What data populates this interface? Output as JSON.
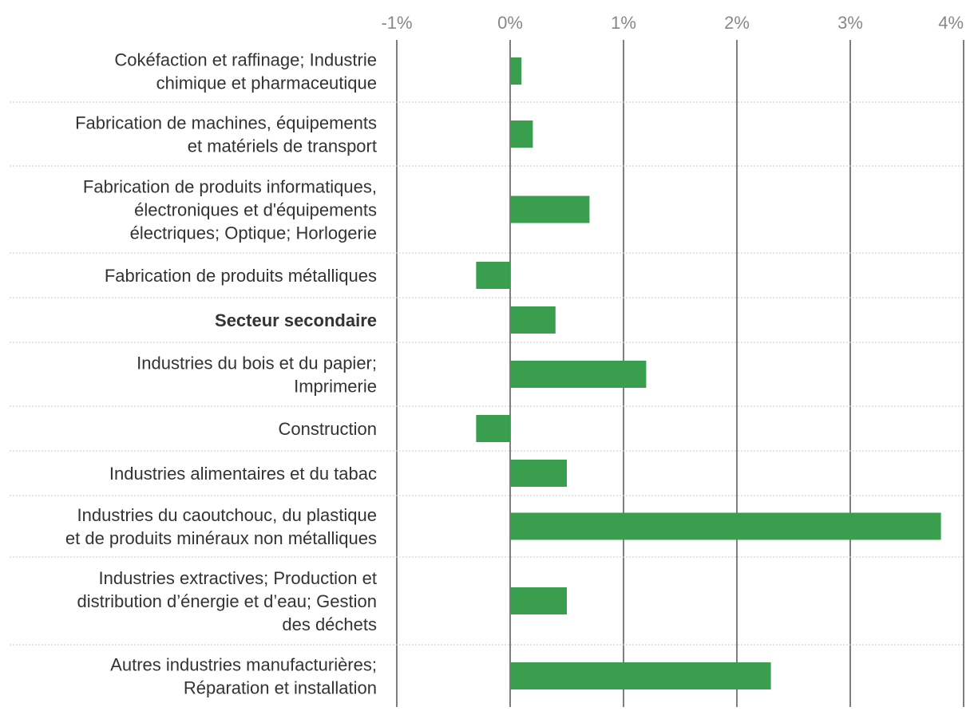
{
  "chart_data": {
    "type": "bar",
    "orientation": "horizontal",
    "title": "",
    "xlabel": "",
    "ylabel": "",
    "xlim": [
      -1,
      4
    ],
    "xticks": [
      -1,
      0,
      1,
      2,
      3,
      4
    ],
    "tick_labels": [
      "-1%",
      "0%",
      "1%",
      "2%",
      "3%",
      "4%"
    ],
    "grid": true,
    "bar_color": "#3a9e4f",
    "categories": [
      {
        "lines": [
          "Cokéfaction et raffinage; Industrie",
          "chimique et pharmaceutique"
        ],
        "value": 0.1,
        "bold": false
      },
      {
        "lines": [
          "Fabrication de machines, équipements",
          "et matériels de transport"
        ],
        "value": 0.2,
        "bold": false
      },
      {
        "lines": [
          "Fabrication de produits informatiques,",
          "électroniques et d'équipements",
          "électriques; Optique; Horlogerie"
        ],
        "value": 0.7,
        "bold": false
      },
      {
        "lines": [
          "Fabrication de produits métalliques"
        ],
        "value": -0.3,
        "bold": false
      },
      {
        "lines": [
          "Secteur secondaire"
        ],
        "value": 0.4,
        "bold": true
      },
      {
        "lines": [
          "Industries du bois et du papier;",
          "Imprimerie"
        ],
        "value": 1.2,
        "bold": false
      },
      {
        "lines": [
          "Construction"
        ],
        "value": -0.3,
        "bold": false
      },
      {
        "lines": [
          "Industries alimentaires et du tabac"
        ],
        "value": 0.5,
        "bold": false
      },
      {
        "lines": [
          "Industries du caoutchouc, du plastique",
          "et de produits minéraux non métalliques"
        ],
        "value": 3.8,
        "bold": false
      },
      {
        "lines": [
          "Industries extractives; Production et",
          "distribution d’énergie et d’eau; Gestion",
          "des déchets"
        ],
        "value": 0.5,
        "bold": false
      },
      {
        "lines": [
          "Autres industries manufacturières;",
          "Réparation et installation"
        ],
        "value": 2.3,
        "bold": false
      }
    ]
  }
}
